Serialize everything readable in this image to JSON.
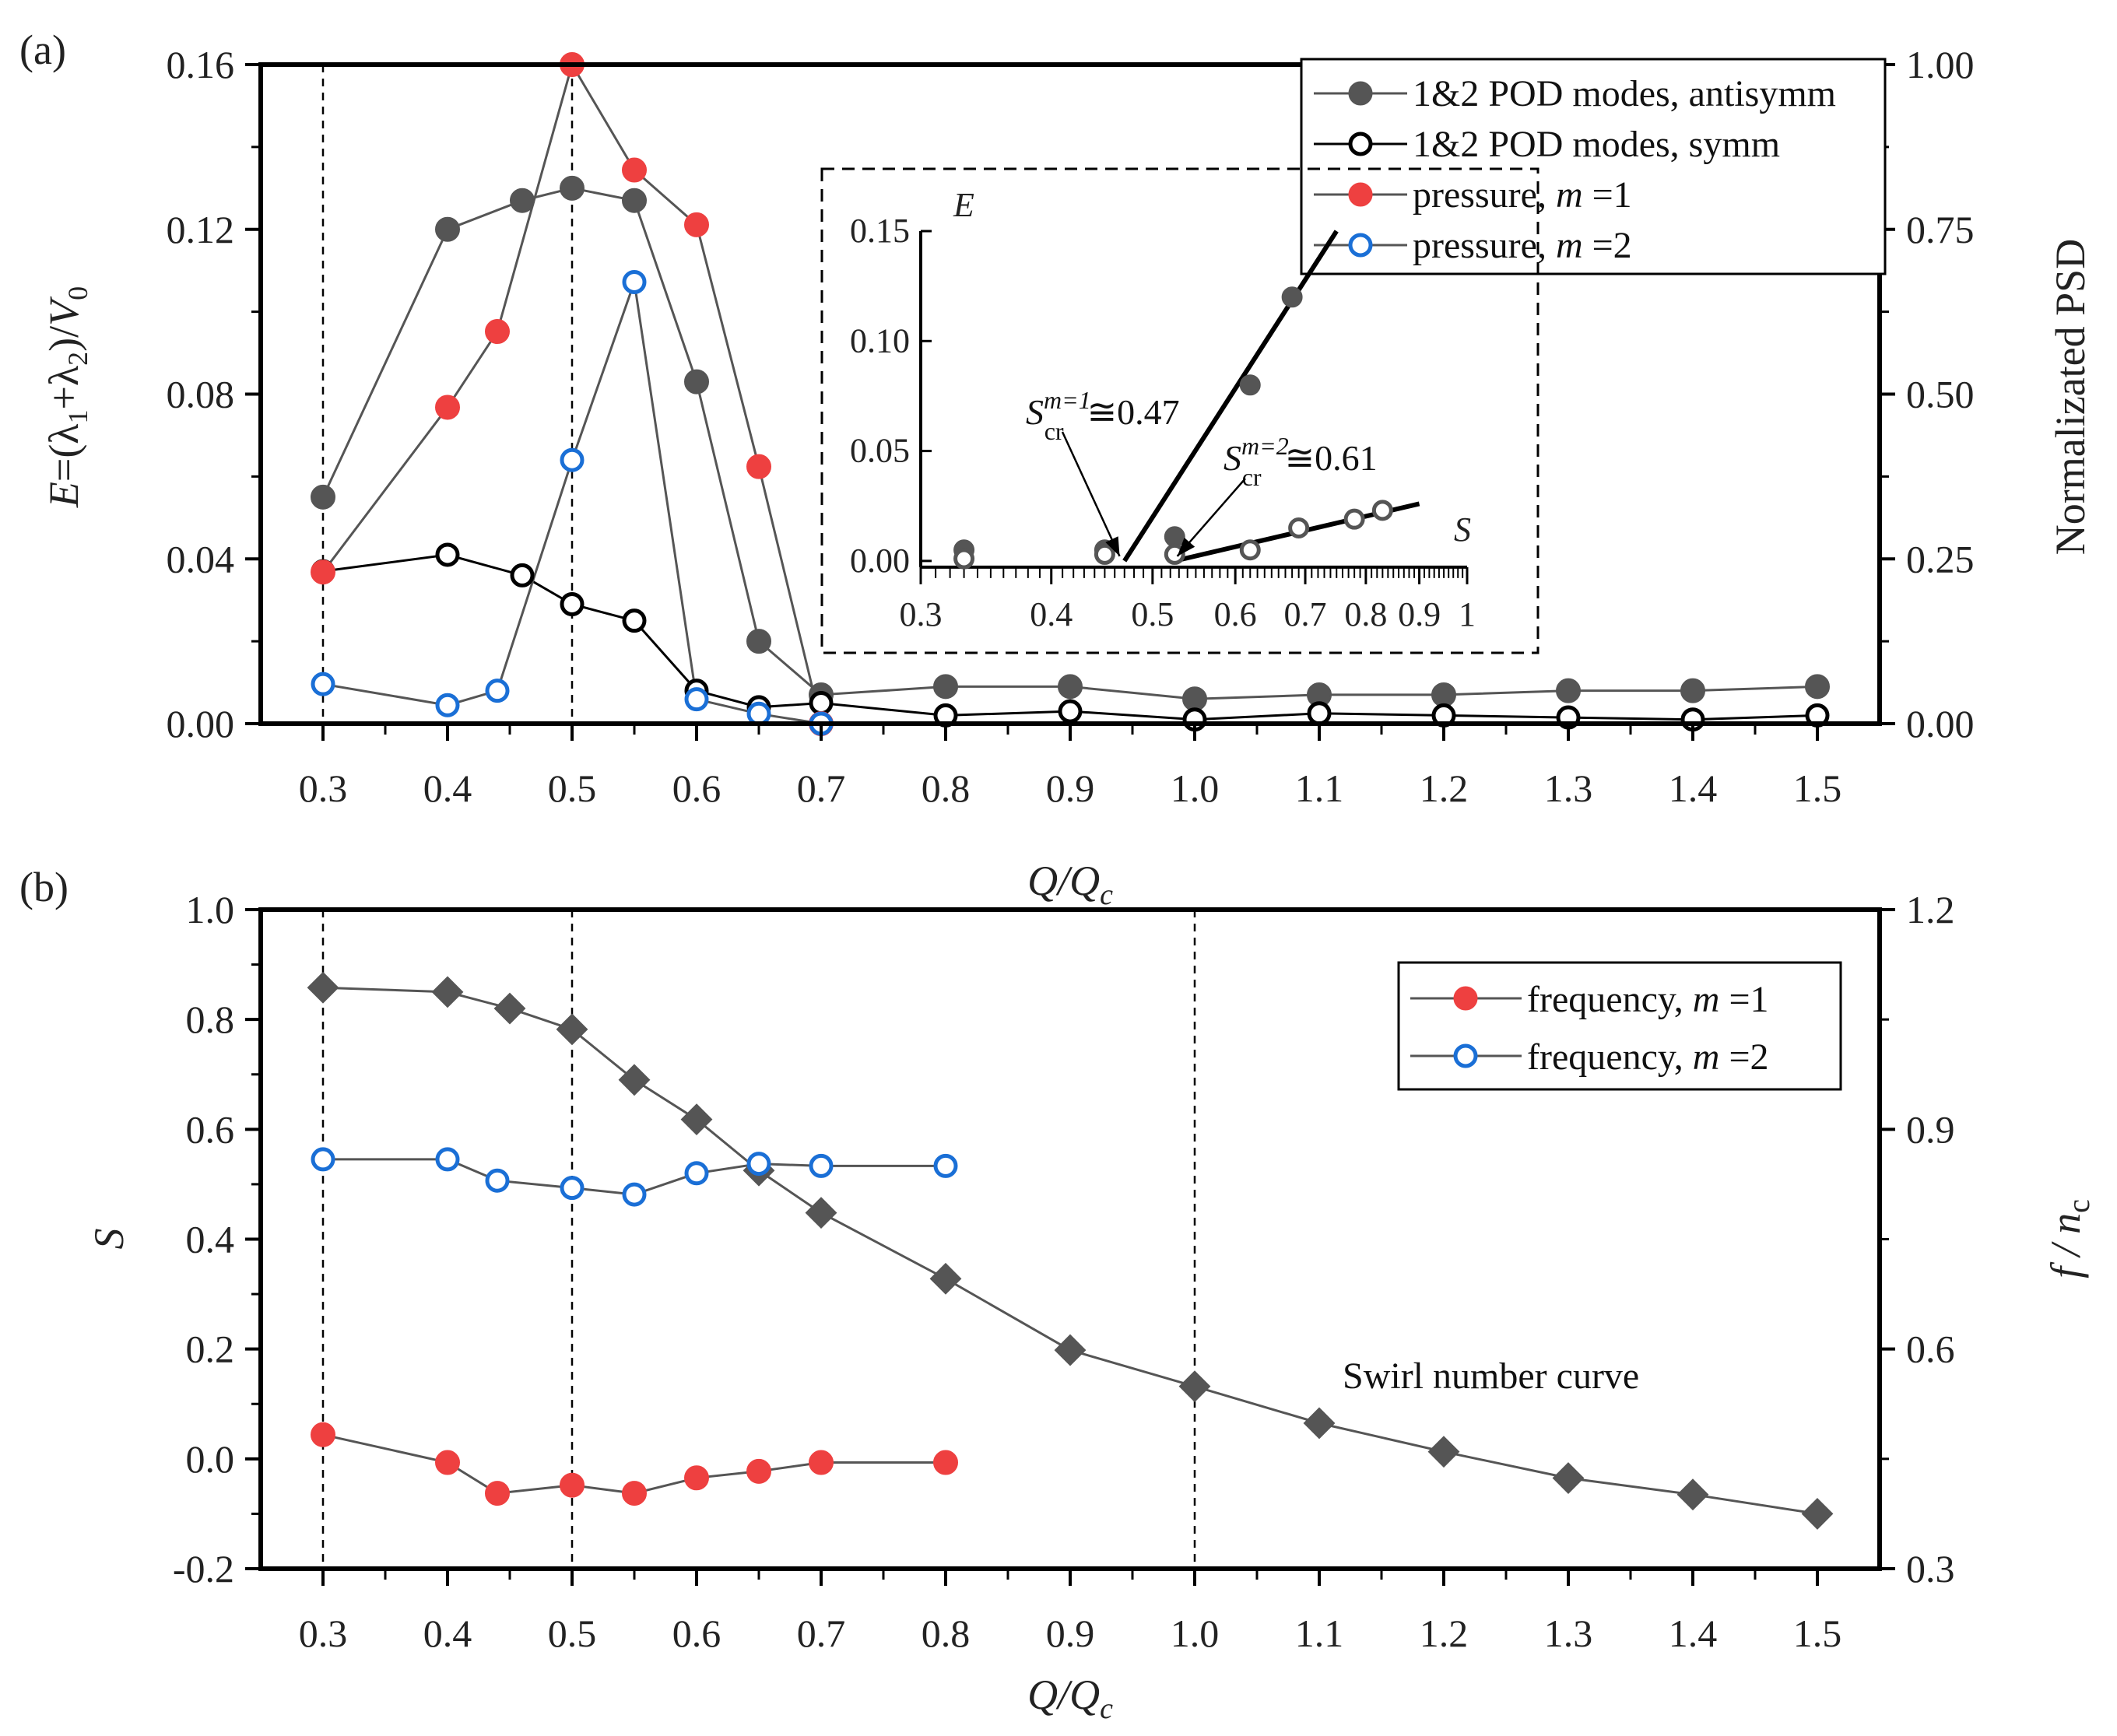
{
  "chart_data": [
    {
      "id": "a",
      "type": "line",
      "panel_label": "(a)",
      "x_categories": [
        "0.3",
        "0.4",
        "0.5",
        "0.6",
        "0.7",
        "0.8",
        "0.9",
        "1.0",
        "1.1",
        "1.2",
        "1.3",
        "1.4",
        "1.5"
      ],
      "xlabel": "Q/Q",
      "xlabel_sub": "c",
      "xlim": [
        0.25,
        1.55
      ],
      "ylabel_left": "E=(λ1+λ2)/V0",
      "ylabel_left_parts": {
        "E": "E",
        "eq": "=(λ",
        "sub1": "1",
        "plus": "+λ",
        "sub2": "2",
        "close": ")/",
        "V": "V",
        "subV": "0"
      },
      "ylim_left": [
        0,
        0.16
      ],
      "yticks_left": [
        "0.00",
        "0.04",
        "0.08",
        "0.12",
        "0.16"
      ],
      "yticks_left_values": [
        0,
        0.04,
        0.08,
        0.12,
        0.16
      ],
      "ylabel_right": "Normalizated PSD",
      "ylim_right": [
        0,
        1
      ],
      "yticks_right": [
        "0.00",
        "0.25",
        "0.50",
        "0.75",
        "1.00"
      ],
      "yticks_right_values": [
        0,
        0.25,
        0.5,
        0.75,
        1.0
      ],
      "vlines": [
        0.3,
        0.5
      ],
      "series": [
        {
          "name": "1&2 POD modes, antisymm",
          "label_main": "1&2 POD modes, antisymm",
          "axis": "left",
          "marker": "filled-circle",
          "color": "#555555",
          "x": [
            0.3,
            0.4,
            0.46,
            0.5,
            0.55,
            0.6,
            0.65,
            0.7,
            0.8,
            0.9,
            1.0,
            1.1,
            1.2,
            1.3,
            1.4,
            1.5
          ],
          "y": [
            0.055,
            0.12,
            0.127,
            0.13,
            0.127,
            0.083,
            0.02,
            0.007,
            0.009,
            0.009,
            0.006,
            0.007,
            0.007,
            0.008,
            0.008,
            0.009
          ]
        },
        {
          "name": "1&2 POD modes, symm",
          "label_main": "1&2 POD modes, symm",
          "axis": "left",
          "marker": "open-circle",
          "color": "#000000",
          "x": [
            0.3,
            0.4,
            0.46,
            0.5,
            0.55,
            0.6,
            0.65,
            0.7,
            0.8,
            0.9,
            1.0,
            1.1,
            1.2,
            1.3,
            1.4,
            1.5
          ],
          "y": [
            0.037,
            0.041,
            0.036,
            0.029,
            0.025,
            0.008,
            0.004,
            0.005,
            0.002,
            0.003,
            0.001,
            0.0025,
            0.002,
            0.0015,
            0.001,
            0.002
          ]
        },
        {
          "name": "pressure, m=1",
          "label_main": "pressure, ",
          "label_m": "m",
          "label_eq": " =1",
          "axis": "right",
          "marker": "filled-circle",
          "color": "#ee4040",
          "x": [
            0.3,
            0.4,
            0.44,
            0.5,
            0.55,
            0.6,
            0.65,
            0.7
          ],
          "y": [
            0.23,
            0.48,
            0.595,
            1.0,
            0.84,
            0.757,
            0.39,
            0.0
          ]
        },
        {
          "name": "pressure, m=2",
          "label_main": "pressure, ",
          "label_m": "m",
          "label_eq": " =2",
          "axis": "right",
          "marker": "open-circle",
          "color": "#1a6fd6",
          "x": [
            0.3,
            0.4,
            0.44,
            0.5,
            0.55,
            0.6,
            0.65,
            0.7
          ],
          "y": [
            0.06,
            0.028,
            0.05,
            0.4,
            0.67,
            0.037,
            0.015,
            0.0
          ]
        }
      ],
      "legend_position": "top-right",
      "inset": {
        "ylabel": "E",
        "xlabel": "S",
        "yticks": [
          "0.00",
          "0.05",
          "0.10",
          "0.15"
        ],
        "yticks_values": [
          0,
          0.05,
          0.1,
          0.15
        ],
        "ylim": [
          -0.005,
          0.15
        ],
        "xscale": "log",
        "xlim": [
          0.3,
          1.0
        ],
        "xticks": [
          "0.3",
          "0.4",
          "0.5",
          "0.6",
          "0.7",
          "0.8",
          "0.9",
          "1"
        ],
        "xticks_values": [
          0.3,
          0.4,
          0.5,
          0.6,
          0.7,
          0.8,
          0.9,
          1.0
        ],
        "antisymm": {
          "x": [
            0.33,
            0.45,
            0.525,
            0.62,
            0.68
          ],
          "y": [
            0.005,
            0.005,
            0.011,
            0.08,
            0.12
          ]
        },
        "symm": {
          "x": [
            0.33,
            0.45,
            0.525,
            0.62,
            0.69,
            0.78,
            0.83
          ],
          "y": [
            0.001,
            0.003,
            0.003,
            0.005,
            0.015,
            0.019,
            0.023
          ]
        },
        "fit_lines": [
          {
            "x": [
              0.47,
              0.75
            ],
            "y": [
              0.0,
              0.15
            ]
          },
          {
            "x": [
              0.525,
              0.9
            ],
            "y": [
              0.0,
              0.026
            ]
          }
        ],
        "annotations": [
          {
            "S": "S",
            "sub": "cr",
            "sup": "m=1",
            "value": "≅0.47",
            "target_x": 0.465
          },
          {
            "S": "S",
            "sub": "cr",
            "sup": "m=2",
            "value": "≅0.61",
            "target_x": 0.528
          }
        ]
      }
    },
    {
      "id": "b",
      "type": "line",
      "panel_label": "(b)",
      "x_categories": [
        "0.3",
        "0.4",
        "0.5",
        "0.6",
        "0.7",
        "0.8",
        "0.9",
        "1.0",
        "1.1",
        "1.2",
        "1.3",
        "1.4",
        "1.5"
      ],
      "xlabel": "Q/Q",
      "xlabel_sub": "c",
      "xlim": [
        0.25,
        1.55
      ],
      "ylabel_left": "S",
      "ylim_left": [
        -0.2,
        1.0
      ],
      "yticks_left": [
        "-0.2",
        "0.0",
        "0.2",
        "0.4",
        "0.6",
        "0.8",
        "1.0"
      ],
      "yticks_left_values": [
        -0.2,
        0.0,
        0.2,
        0.4,
        0.6,
        0.8,
        1.0
      ],
      "ylabel_right": "f / n",
      "ylabel_right_main": "f / n",
      "ylabel_right_sub": "c",
      "ylim_right": [
        0.3,
        1.2
      ],
      "yticks_right": [
        "0.3",
        "0.6",
        "0.9",
        "1.2"
      ],
      "yticks_right_values": [
        0.3,
        0.6,
        0.9,
        1.2
      ],
      "vlines": [
        0.3,
        0.5,
        1.0
      ],
      "series": [
        {
          "name": "Swirl number curve",
          "axis": "left",
          "marker": "diamond",
          "color": "#555555",
          "x": [
            0.3,
            0.4,
            0.45,
            0.5,
            0.55,
            0.6,
            0.65,
            0.7,
            0.8,
            0.9,
            1.0,
            1.1,
            1.2,
            1.3,
            1.4,
            1.5
          ],
          "y": [
            0.858,
            0.85,
            0.82,
            0.782,
            0.69,
            0.618,
            0.525,
            0.448,
            0.328,
            0.198,
            0.132,
            0.065,
            0.013,
            -0.035,
            -0.065,
            -0.1
          ]
        },
        {
          "name": "frequency, m=1",
          "label_main": "frequency, ",
          "label_m": "m",
          "label_eq": " =1",
          "axis": "right",
          "marker": "filled-circle",
          "color": "#ee4040",
          "x": [
            0.3,
            0.4,
            0.44,
            0.5,
            0.55,
            0.6,
            0.65,
            0.7,
            0.8
          ],
          "y": [
            0.483,
            0.445,
            0.403,
            0.414,
            0.403,
            0.424,
            0.433,
            0.445,
            0.445
          ]
        },
        {
          "name": "frequency, m=2",
          "label_main": "frequency, ",
          "label_m": "m",
          "label_eq": " =2",
          "axis": "right",
          "marker": "open-circle",
          "color": "#1a6fd6",
          "x": [
            0.3,
            0.4,
            0.44,
            0.5,
            0.55,
            0.6,
            0.65,
            0.7,
            0.8
          ],
          "y": [
            0.859,
            0.859,
            0.83,
            0.82,
            0.811,
            0.84,
            0.853,
            0.85,
            0.85
          ]
        }
      ],
      "annotation_text": "Swirl number curve",
      "legend_position": "top-right"
    }
  ]
}
